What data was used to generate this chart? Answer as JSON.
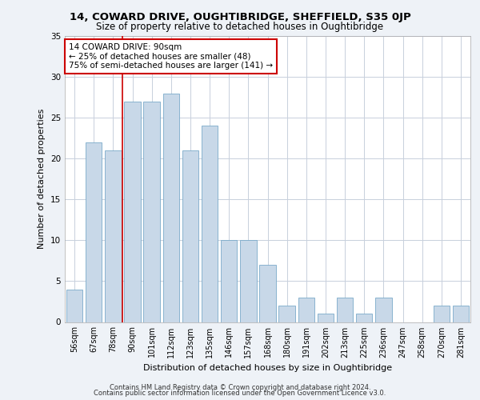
{
  "title1": "14, COWARD DRIVE, OUGHTIBRIDGE, SHEFFIELD, S35 0JP",
  "title2": "Size of property relative to detached houses in Oughtibridge",
  "xlabel": "Distribution of detached houses by size in Oughtibridge",
  "ylabel": "Number of detached properties",
  "categories": [
    "56sqm",
    "67sqm",
    "78sqm",
    "90sqm",
    "101sqm",
    "112sqm",
    "123sqm",
    "135sqm",
    "146sqm",
    "157sqm",
    "168sqm",
    "180sqm",
    "191sqm",
    "202sqm",
    "213sqm",
    "225sqm",
    "236sqm",
    "247sqm",
    "258sqm",
    "270sqm",
    "281sqm"
  ],
  "values": [
    4,
    22,
    21,
    27,
    27,
    28,
    21,
    24,
    10,
    10,
    7,
    2,
    3,
    1,
    3,
    1,
    3,
    0,
    0,
    2,
    2
  ],
  "bar_color": "#c8d8e8",
  "bar_edge_color": "#7aaaca",
  "vline_index": 3,
  "vline_color": "#cc0000",
  "annotation_text": "14 COWARD DRIVE: 90sqm\n← 25% of detached houses are smaller (48)\n75% of semi-detached houses are larger (141) →",
  "annotation_box_color": "#ffffff",
  "annotation_box_edge": "#cc0000",
  "ylim": [
    0,
    35
  ],
  "yticks": [
    0,
    5,
    10,
    15,
    20,
    25,
    30,
    35
  ],
  "footer1": "Contains HM Land Registry data © Crown copyright and database right 2024.",
  "footer2": "Contains public sector information licensed under the Open Government Licence v3.0.",
  "bg_color": "#eef2f7",
  "plot_bg_color": "#ffffff",
  "grid_color": "#c8d0dc"
}
